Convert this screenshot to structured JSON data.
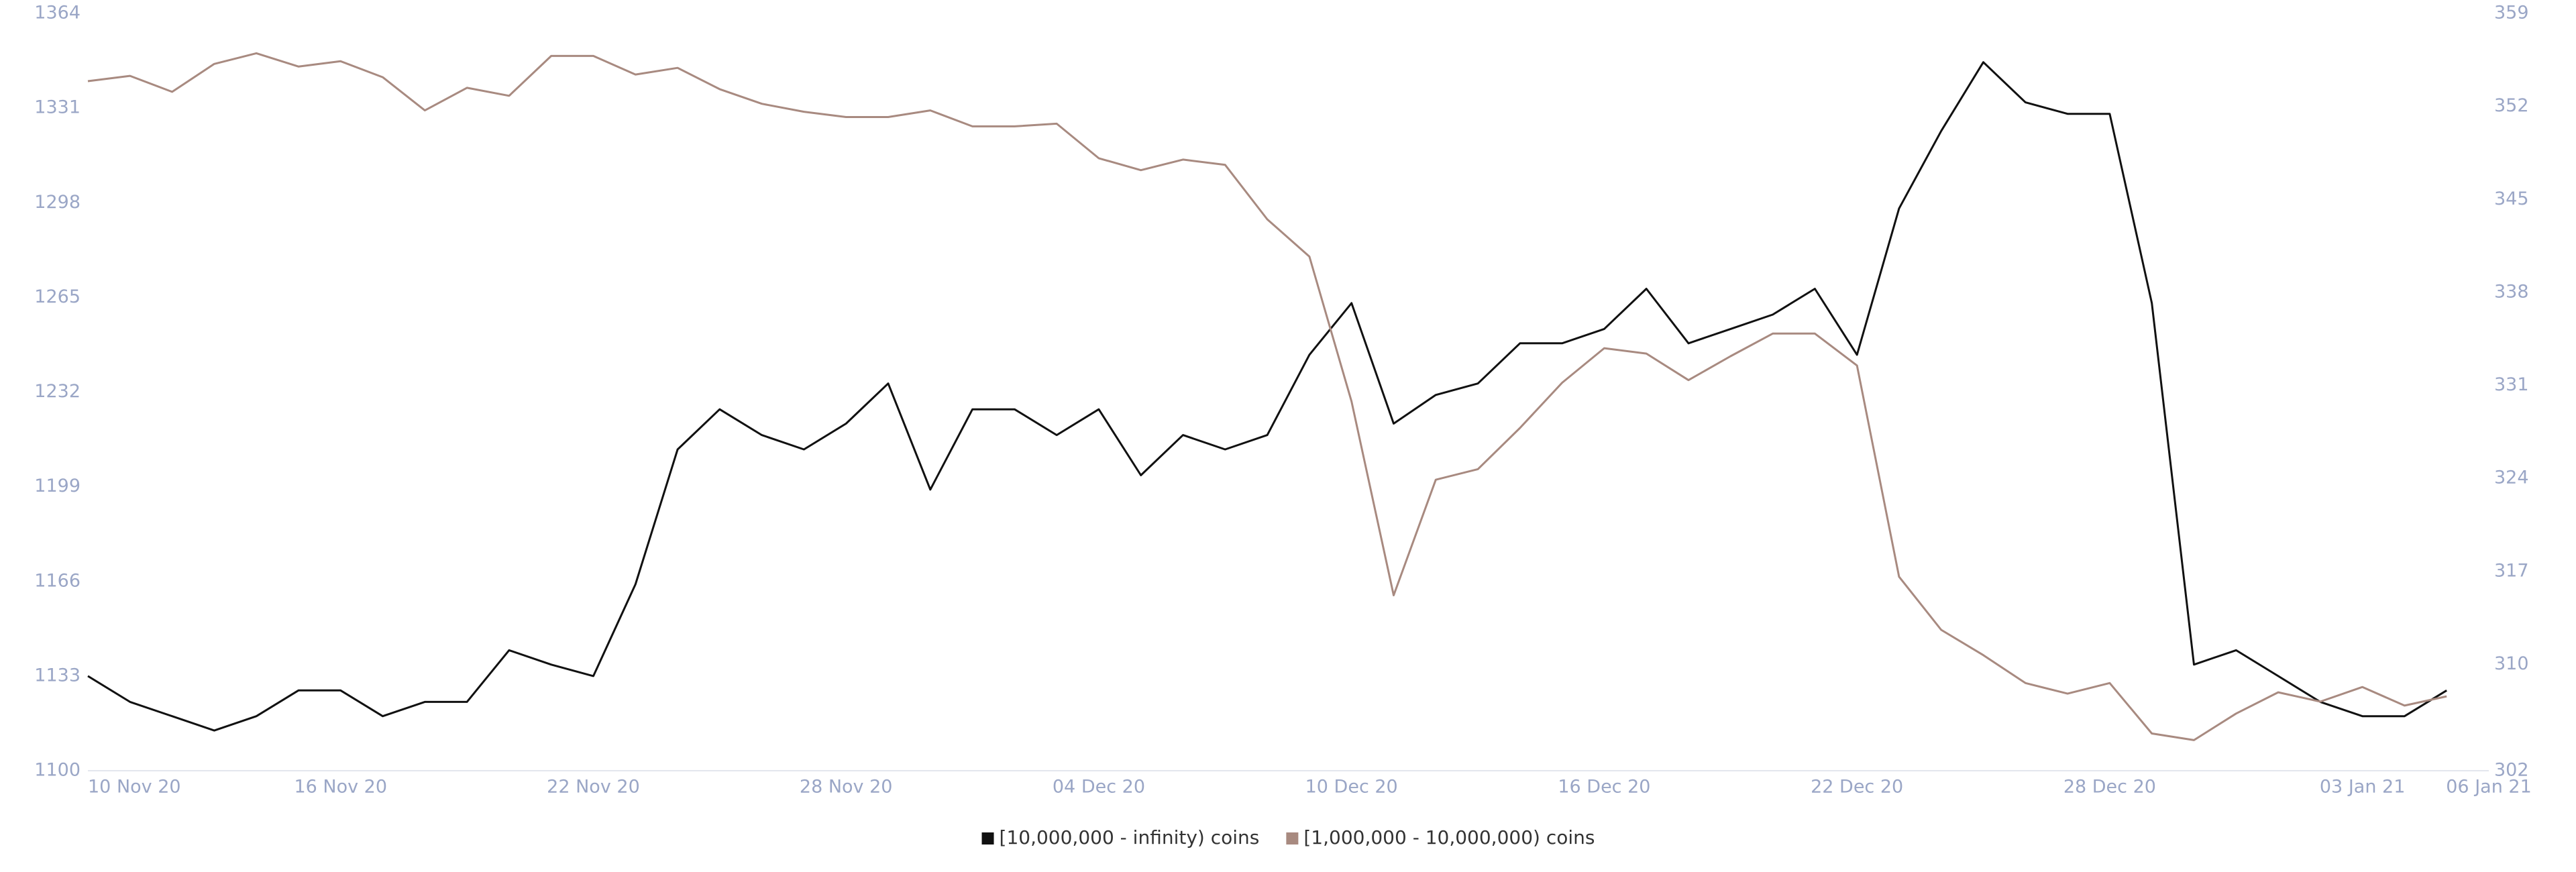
{
  "chart_data": {
    "type": "line",
    "x": [
      "2020-11-10",
      "2020-11-11",
      "2020-11-12",
      "2020-11-13",
      "2020-11-14",
      "2020-11-15",
      "2020-11-16",
      "2020-11-17",
      "2020-11-18",
      "2020-11-19",
      "2020-11-20",
      "2020-11-21",
      "2020-11-22",
      "2020-11-23",
      "2020-11-24",
      "2020-11-25",
      "2020-11-26",
      "2020-11-27",
      "2020-11-28",
      "2020-11-29",
      "2020-11-30",
      "2020-12-01",
      "2020-12-02",
      "2020-12-03",
      "2020-12-04",
      "2020-12-05",
      "2020-12-06",
      "2020-12-07",
      "2020-12-08",
      "2020-12-09",
      "2020-12-10",
      "2020-12-11",
      "2020-12-12",
      "2020-12-13",
      "2020-12-14",
      "2020-12-15",
      "2020-12-16",
      "2020-12-17",
      "2020-12-18",
      "2020-12-19",
      "2020-12-20",
      "2020-12-21",
      "2020-12-22",
      "2020-12-23",
      "2020-12-24",
      "2020-12-25",
      "2020-12-26",
      "2020-12-27",
      "2020-12-28",
      "2020-12-29",
      "2020-12-30",
      "2020-12-31",
      "2021-01-01",
      "2021-01-02",
      "2021-01-03",
      "2021-01-04",
      "2021-01-05"
    ],
    "series": [
      {
        "name": "[10,000,000 - infinity) coins",
        "color": "#111111",
        "axis": "y",
        "values": [
          1133,
          1124,
          1119,
          1114,
          1119,
          1128,
          1128,
          1119,
          1124,
          1124,
          1142,
          1137,
          1133,
          1165,
          1212,
          1226,
          1217,
          1212,
          1221,
          1235,
          1198,
          1226,
          1226,
          1217,
          1226,
          1203,
          1217,
          1212,
          1217,
          1245,
          1263,
          1221,
          1231,
          1235,
          1249,
          1249,
          1254,
          1268,
          1249,
          1254,
          1259,
          1268,
          1245,
          1296,
          1323,
          1347,
          1333,
          1329,
          1329,
          1263,
          1137,
          1142,
          1133,
          1124,
          1119,
          1119,
          1128
        ]
      },
      {
        "name": "[1,000,000 - 10,000,000) coins",
        "color": "#a88a80",
        "axis": "y2",
        "values": [
          353.9,
          354.3,
          353.1,
          355.2,
          356.0,
          355.0,
          355.4,
          354.2,
          351.7,
          353.4,
          352.8,
          355.8,
          355.8,
          354.4,
          354.9,
          353.3,
          352.2,
          351.6,
          351.2,
          351.2,
          351.7,
          350.5,
          350.5,
          350.7,
          348.1,
          347.2,
          348.0,
          347.6,
          343.5,
          340.7,
          329.8,
          315.2,
          323.9,
          324.7,
          327.8,
          331.2,
          333.8,
          333.4,
          331.4,
          333.2,
          334.9,
          334.9,
          332.5,
          316.6,
          312.6,
          310.7,
          308.6,
          307.8,
          308.6,
          304.8,
          304.3,
          306.3,
          307.9,
          307.2,
          308.3,
          306.9,
          307.6
        ]
      }
    ],
    "xlim": [
      "2020-11-10",
      "2021-01-06"
    ],
    "xticks": [
      {
        "value": "2020-11-10",
        "label": "10 Nov 20"
      },
      {
        "value": "2020-11-16",
        "label": "16 Nov 20"
      },
      {
        "value": "2020-11-22",
        "label": "22 Nov 20"
      },
      {
        "value": "2020-11-28",
        "label": "28 Nov 20"
      },
      {
        "value": "2020-12-04",
        "label": "04 Dec 20"
      },
      {
        "value": "2020-12-10",
        "label": "10 Dec 20"
      },
      {
        "value": "2020-12-16",
        "label": "16 Dec 20"
      },
      {
        "value": "2020-12-22",
        "label": "22 Dec 20"
      },
      {
        "value": "2020-12-28",
        "label": "28 Dec 20"
      },
      {
        "value": "2021-01-03",
        "label": "03 Jan 21"
      },
      {
        "value": "2021-01-06",
        "label": "06 Jan 21"
      }
    ],
    "ylim": [
      1100,
      1364
    ],
    "yticks": [
      1100,
      1133,
      1166,
      1199,
      1232,
      1265,
      1298,
      1331,
      1364
    ],
    "y2lim": [
      302,
      359
    ],
    "y2ticks": [
      302,
      310,
      317,
      324,
      331,
      338,
      345,
      352,
      359
    ],
    "legend": "bottom",
    "grid": false
  }
}
